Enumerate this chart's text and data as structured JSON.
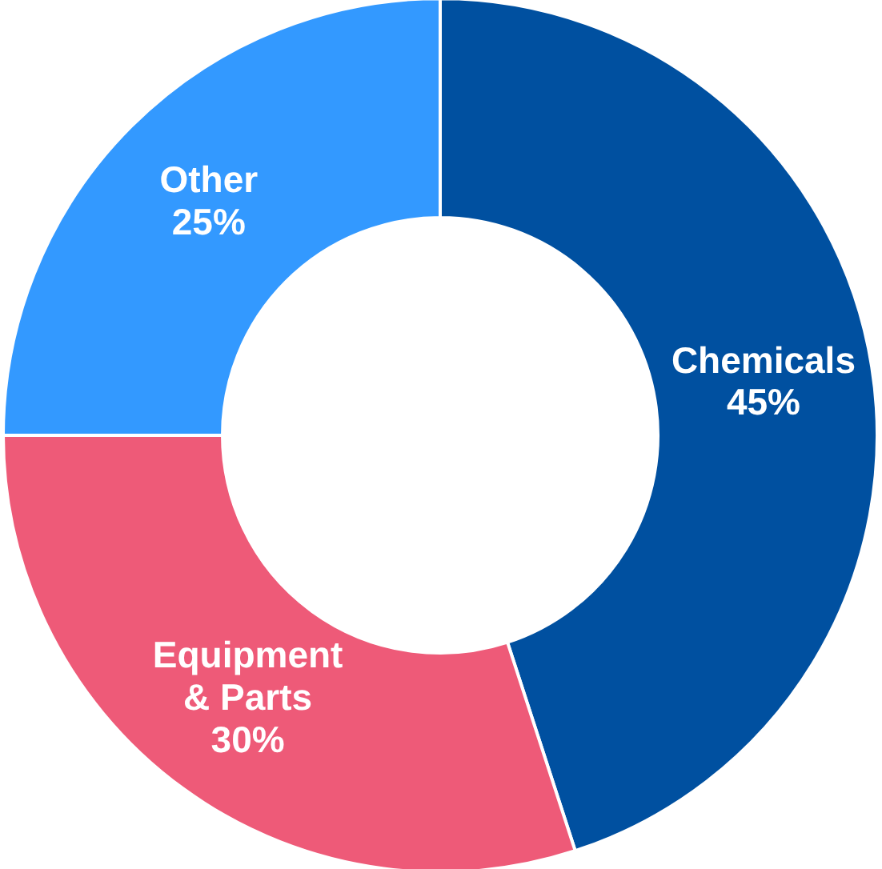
{
  "chart_data": {
    "type": "donut",
    "categories": [
      "Chemicals",
      "Equipment & Parts",
      "Other"
    ],
    "values": [
      45,
      30,
      25
    ],
    "colors": [
      "#0050a0",
      "#ee5a78",
      "#3399ff"
    ],
    "value_labels": [
      "45%",
      "30%",
      "25%"
    ]
  }
}
